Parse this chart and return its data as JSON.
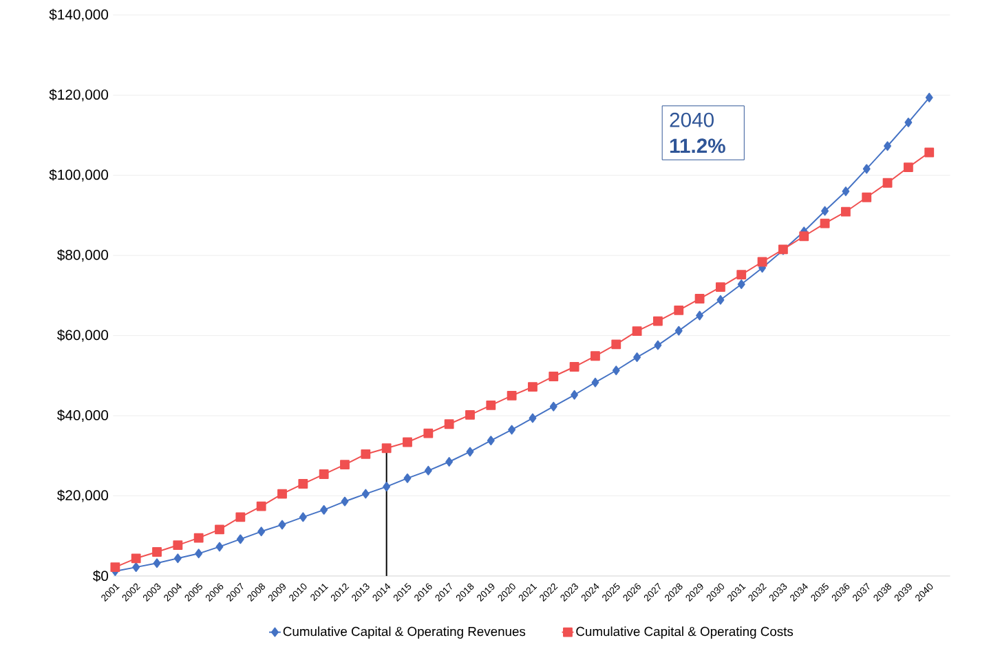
{
  "chart_data": {
    "type": "line",
    "x": [
      2001,
      2002,
      2003,
      2004,
      2005,
      2006,
      2007,
      2008,
      2009,
      2010,
      2011,
      2012,
      2013,
      2014,
      2015,
      2016,
      2017,
      2018,
      2019,
      2020,
      2021,
      2022,
      2023,
      2024,
      2025,
      2026,
      2027,
      2028,
      2029,
      2030,
      2031,
      2032,
      2033,
      2034,
      2035,
      2036,
      2037,
      2038,
      2039,
      2040
    ],
    "series": [
      {
        "name": "Cumulative Capital & Operating Revenues",
        "color": "#4472c4",
        "marker": "diamond",
        "values": [
          1200,
          2200,
          3200,
          4400,
          5600,
          7300,
          9200,
          11100,
          12800,
          14700,
          16500,
          18600,
          20500,
          22300,
          24400,
          26300,
          28500,
          31000,
          33800,
          36500,
          39400,
          42300,
          45200,
          48300,
          51300,
          54600,
          57600,
          61200,
          65000,
          68900,
          72800,
          76900,
          81300,
          86000,
          91100,
          96000,
          101600,
          107300,
          113200,
          119400
        ]
      },
      {
        "name": "Cumulative Capital & Operating Costs",
        "color": "#f05050",
        "marker": "square",
        "values": [
          2200,
          4400,
          6000,
          7700,
          9500,
          11600,
          14700,
          17400,
          20500,
          23000,
          25400,
          27800,
          30400,
          31900,
          33400,
          35600,
          37900,
          40200,
          42600,
          45000,
          47200,
          49800,
          52200,
          54900,
          57800,
          61100,
          63600,
          66300,
          69200,
          72100,
          75200,
          78400,
          81500,
          84800,
          88000,
          90900,
          94500,
          98100,
          102000,
          105700
        ]
      }
    ],
    "xlim": [
      2000.9,
      2041
    ],
    "xticks": [
      2001,
      2002,
      2003,
      2004,
      2005,
      2006,
      2007,
      2008,
      2009,
      2010,
      2011,
      2012,
      2013,
      2014,
      2015,
      2016,
      2017,
      2018,
      2019,
      2020,
      2021,
      2022,
      2023,
      2024,
      2025,
      2026,
      2027,
      2028,
      2029,
      2030,
      2031,
      2032,
      2033,
      2034,
      2035,
      2036,
      2037,
      2038,
      2039,
      2040
    ],
    "ylim": [
      0,
      140000
    ],
    "yticks": [
      {
        "value": 0,
        "label": "$0"
      },
      {
        "value": 20000,
        "label": "$20,000"
      },
      {
        "value": 40000,
        "label": "$40,000"
      },
      {
        "value": 60000,
        "label": "$60,000"
      },
      {
        "value": 80000,
        "label": "$80,000"
      },
      {
        "value": 100000,
        "label": "$100,000"
      },
      {
        "value": 120000,
        "label": "$120,000"
      },
      {
        "value": 140000,
        "label": "$140,000"
      }
    ],
    "grid": "y",
    "legend": "bottom",
    "ref_lines": [
      {
        "axis": "x",
        "value": 2014,
        "color": "#000000"
      }
    ],
    "annotations": [
      "2040 **11.2%**"
    ]
  }
}
